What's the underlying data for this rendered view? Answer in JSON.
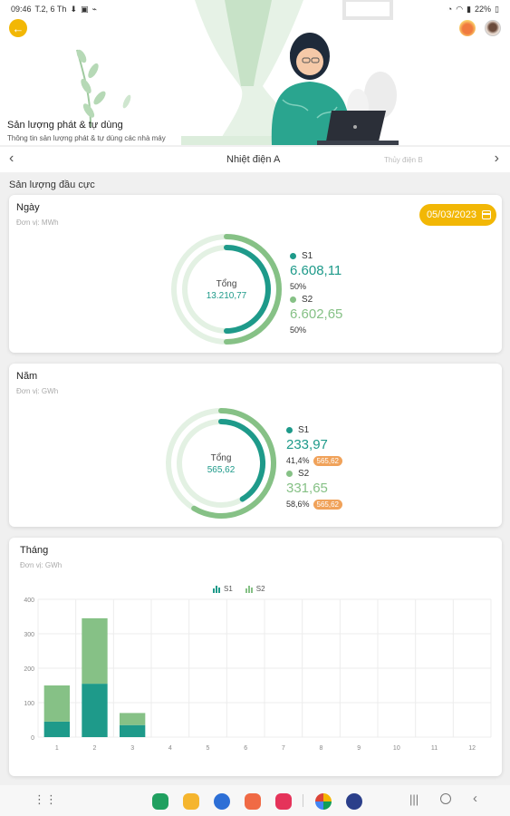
{
  "status": {
    "time": "09:46",
    "date": "T.2, 6 Th",
    "battery": "22%"
  },
  "header": {
    "title": "Sản lượng phát & tự dùng",
    "subtitle": "Thông tin sản lượng phát & tự dùng các nhà máy"
  },
  "plant_nav": {
    "current": "Nhiệt điện A",
    "next": "Thủy điện B"
  },
  "section_title": "Sản lượng đầu cực",
  "day_card": {
    "title": "Ngày",
    "unit": "Đơn vị: MWh",
    "date": "05/03/2023",
    "total_label": "Tổng",
    "total_value": "13.210,77",
    "s1_name": "S1",
    "s1_value": "6.608,11",
    "s1_pct": "50%",
    "s2_name": "S2",
    "s2_value": "6.602,65",
    "s2_pct": "50%",
    "s1_fraction": 0.5,
    "s2_fraction": 0.5
  },
  "year_card": {
    "title": "Năm",
    "unit": "Đơn vị: GWh",
    "total_label": "Tổng",
    "total_value": "565,62",
    "s1_name": "S1",
    "s1_value": "233,97",
    "s1_pct": "41,4%",
    "s1_badge": "565,62",
    "s2_name": "S2",
    "s2_value": "331,65",
    "s2_pct": "58,6%",
    "s2_badge": "565,62",
    "s1_fraction": 0.414,
    "s2_fraction": 0.586
  },
  "month_card": {
    "title": "Tháng",
    "unit": "Đơn vị: GWh"
  },
  "colors": {
    "s1": "#1e9a8a",
    "s2": "#86c186",
    "accent": "#f2b705",
    "badge": "#f0a25a"
  },
  "chart_data": {
    "type": "bar",
    "stacked": true,
    "categories": [
      "1",
      "2",
      "3",
      "4",
      "5",
      "6",
      "7",
      "8",
      "9",
      "10",
      "11",
      "12"
    ],
    "series": [
      {
        "name": "S1",
        "values": [
          45,
          155,
          35,
          0,
          0,
          0,
          0,
          0,
          0,
          0,
          0,
          0
        ]
      },
      {
        "name": "S2",
        "values": [
          105,
          190,
          35,
          0,
          0,
          0,
          0,
          0,
          0,
          0,
          0,
          0
        ]
      }
    ],
    "yticks": [
      "0",
      "100",
      "200",
      "300",
      "400"
    ],
    "ylim": [
      0,
      400
    ],
    "grid": true,
    "legend": "top-center"
  },
  "dock_icons": [
    "grid-icon",
    "phone-app-icon",
    "folder-app-icon",
    "chat-app-icon",
    "contacts-app-icon",
    "video-app-icon",
    "photos-app-icon",
    "settings-app-icon"
  ]
}
